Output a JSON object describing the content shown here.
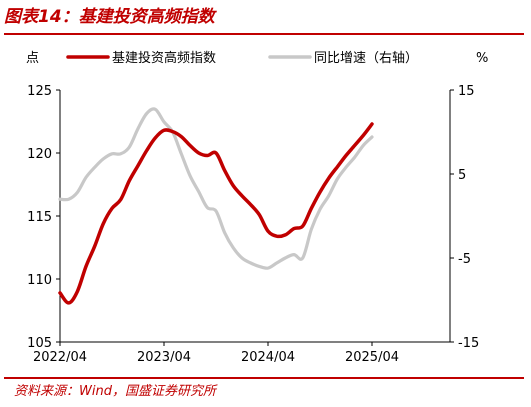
{
  "title": "图表14：基建投资高频指数",
  "source": "资料来源：Wind，国盛证券研究所",
  "colors": {
    "accent": "#c00000",
    "series_main": "#c00000",
    "series_secondary": "#c8c8c8"
  },
  "chart_data": {
    "type": "line",
    "y_left_label": "点",
    "y_right_label": "%",
    "y_left_lim": [
      105,
      125
    ],
    "y_left_ticks": [
      "125",
      "120",
      "115",
      "110",
      "105"
    ],
    "y_left_tick_values": [
      125,
      120,
      115,
      110,
      105
    ],
    "y_right_lim": [
      -15,
      15
    ],
    "y_right_ticks": [
      "15",
      "5",
      "-5",
      "-15"
    ],
    "y_right_tick_values": [
      15,
      5,
      -5,
      -15
    ],
    "x_lim": [
      "2022-04",
      "2026-01"
    ],
    "x_ticks": [
      "2022/04",
      "2023/04",
      "2024/04",
      "2025/04"
    ],
    "x_tick_dates": [
      "2022-04",
      "2023-04",
      "2024-04",
      "2025-04"
    ],
    "grid": false,
    "legend_position": "top",
    "series": [
      {
        "name": "基建投资高频指数",
        "axis": "left",
        "color": "#c00000",
        "points": [
          [
            "2022-04",
            108.9
          ],
          [
            "2022-05",
            108.1
          ],
          [
            "2022-06",
            109.0
          ],
          [
            "2022-07",
            111.0
          ],
          [
            "2022-08",
            112.6
          ],
          [
            "2022-09",
            114.4
          ],
          [
            "2022-10",
            115.6
          ],
          [
            "2022-11",
            116.3
          ],
          [
            "2022-12",
            117.8
          ],
          [
            "2023-01",
            119.0
          ],
          [
            "2023-02",
            120.2
          ],
          [
            "2023-03",
            121.2
          ],
          [
            "2023-04",
            121.8
          ],
          [
            "2023-05",
            121.7
          ],
          [
            "2023-06",
            121.3
          ],
          [
            "2023-07",
            120.6
          ],
          [
            "2023-08",
            120.0
          ],
          [
            "2023-09",
            119.8
          ],
          [
            "2023-10",
            120.0
          ],
          [
            "2023-11",
            118.6
          ],
          [
            "2023-12",
            117.4
          ],
          [
            "2024-01",
            116.6
          ],
          [
            "2024-02",
            115.9
          ],
          [
            "2024-03",
            115.1
          ],
          [
            "2024-04",
            113.8
          ],
          [
            "2024-05",
            113.4
          ],
          [
            "2024-06",
            113.5
          ],
          [
            "2024-07",
            114.0
          ],
          [
            "2024-08",
            114.2
          ],
          [
            "2024-09",
            115.6
          ],
          [
            "2024-10",
            116.9
          ],
          [
            "2024-11",
            118.0
          ],
          [
            "2024-12",
            118.9
          ],
          [
            "2025-01",
            119.8
          ],
          [
            "2025-02",
            120.6
          ],
          [
            "2025-03",
            121.4
          ],
          [
            "2025-04",
            122.3
          ]
        ]
      },
      {
        "name": "同比增速（右轴）",
        "axis": "right",
        "color": "#c8c8c8",
        "points": [
          [
            "2022-04",
            2.0
          ],
          [
            "2022-05",
            2.0
          ],
          [
            "2022-06",
            2.8
          ],
          [
            "2022-07",
            4.6
          ],
          [
            "2022-08",
            5.8
          ],
          [
            "2022-09",
            6.8
          ],
          [
            "2022-10",
            7.4
          ],
          [
            "2022-11",
            7.4
          ],
          [
            "2022-12",
            8.2
          ],
          [
            "2023-01",
            10.4
          ],
          [
            "2023-02",
            12.2
          ],
          [
            "2023-03",
            12.7
          ],
          [
            "2023-04",
            11.2
          ],
          [
            "2023-05",
            10.0
          ],
          [
            "2023-06",
            7.4
          ],
          [
            "2023-07",
            4.8
          ],
          [
            "2023-08",
            2.9
          ],
          [
            "2023-09",
            1.0
          ],
          [
            "2023-10",
            0.6
          ],
          [
            "2023-11",
            -2.0
          ],
          [
            "2023-12",
            -3.8
          ],
          [
            "2024-01",
            -5.0
          ],
          [
            "2024-02",
            -5.6
          ],
          [
            "2024-03",
            -6.0
          ],
          [
            "2024-04",
            -6.2
          ],
          [
            "2024-05",
            -5.6
          ],
          [
            "2024-06",
            -5.0
          ],
          [
            "2024-07",
            -4.6
          ],
          [
            "2024-08",
            -5.0
          ],
          [
            "2024-09",
            -1.6
          ],
          [
            "2024-10",
            0.8
          ],
          [
            "2024-11",
            2.4
          ],
          [
            "2024-12",
            4.4
          ],
          [
            "2025-01",
            5.8
          ],
          [
            "2025-02",
            7.0
          ],
          [
            "2025-03",
            8.4
          ],
          [
            "2025-04",
            9.4
          ]
        ]
      }
    ]
  }
}
